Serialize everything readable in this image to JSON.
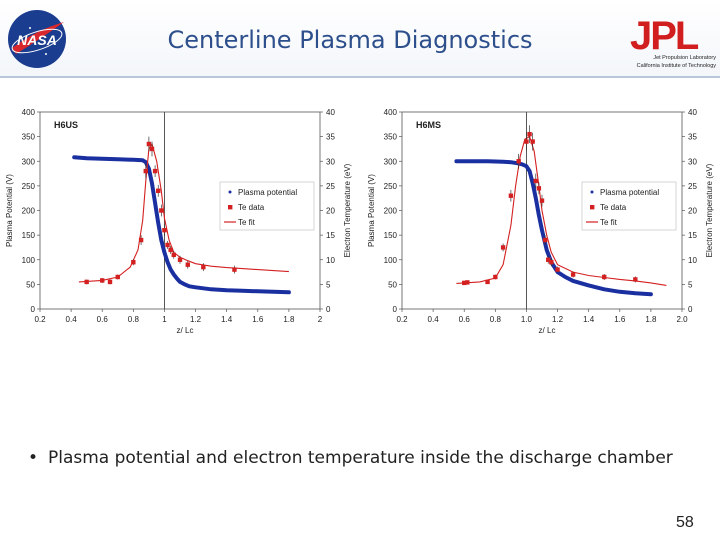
{
  "header": {
    "title": "Centerline Plasma Diagnostics"
  },
  "logos": {
    "nasa_text": "NASA",
    "jpl_text": "JPL",
    "jpl_line1": "Jet Propulsion Laboratory",
    "jpl_line2": "California Institute of Technology"
  },
  "bullet": {
    "marker": "•",
    "text": "Plasma potential and electron temperature inside the discharge chamber"
  },
  "page_number": "58",
  "colors": {
    "title": "#2d4f8c",
    "potential": "#1a2fa0",
    "te": "#d42020",
    "vline": "#444444"
  },
  "chart_data": [
    {
      "type": "scatter",
      "title": "H6US",
      "xlabel": "z/ Lc",
      "ylabel": "Plasma Potential (V)",
      "ylabel_right": "Electron Temperature (eV)",
      "xlim": [
        0.2,
        2.0
      ],
      "x_ticks": [
        "0.2",
        "0.4",
        "0.6",
        "0.8",
        "1",
        "1.2",
        "1.4",
        "1.6",
        "1.8",
        "2"
      ],
      "ylim": [
        0,
        400
      ],
      "y_ticks": [
        "0",
        "50",
        "100",
        "150",
        "200",
        "250",
        "300",
        "350",
        "400"
      ],
      "y2lim": [
        0,
        40
      ],
      "y2_ticks": [
        "0",
        "5",
        "10",
        "15",
        "20",
        "25",
        "30",
        "35",
        "40"
      ],
      "vline_x": 1.0,
      "legend_position": "right",
      "legend": [
        "Plasma potential",
        "Te data",
        "Te fit"
      ],
      "series": [
        {
          "name": "Plasma potential",
          "axis": "left",
          "x": [
            0.42,
            0.5,
            0.6,
            0.7,
            0.8,
            0.86,
            0.88,
            0.9,
            0.92,
            0.94,
            0.96,
            0.98,
            1.0,
            1.02,
            1.04,
            1.06,
            1.08,
            1.1,
            1.13,
            1.16,
            1.2,
            1.25,
            1.3,
            1.4,
            1.5,
            1.6,
            1.7,
            1.8
          ],
          "y": [
            308,
            306,
            305,
            304,
            303,
            302,
            298,
            285,
            255,
            215,
            175,
            140,
            115,
            95,
            80,
            70,
            62,
            55,
            50,
            46,
            44,
            42,
            40,
            38,
            37,
            36,
            35,
            34
          ]
        },
        {
          "name": "Te data",
          "axis": "right",
          "x": [
            0.5,
            0.6,
            0.65,
            0.7,
            0.8,
            0.85,
            0.88,
            0.9,
            0.92,
            0.94,
            0.96,
            0.98,
            1.0,
            1.02,
            1.04,
            1.06,
            1.1,
            1.15,
            1.25,
            1.45
          ],
          "y": [
            5.5,
            5.8,
            5.5,
            6.5,
            9.5,
            14,
            28,
            33.5,
            32.5,
            28,
            24,
            20,
            16,
            13,
            12,
            11,
            10,
            9,
            8.5,
            8
          ],
          "err": [
            0.5,
            0.5,
            0.5,
            0.5,
            0.6,
            1,
            1.5,
            1.5,
            1.5,
            1.2,
            1.2,
            1.2,
            1.2,
            0.8,
            0.8,
            0.8,
            0.8,
            0.8,
            0.8,
            0.8
          ]
        },
        {
          "name": "Te fit",
          "axis": "right",
          "x": [
            0.45,
            0.6,
            0.7,
            0.78,
            0.83,
            0.86,
            0.88,
            0.9,
            0.92,
            0.95,
            0.98,
            1.0,
            1.03,
            1.06,
            1.1,
            1.15,
            1.2,
            1.3,
            1.4,
            1.5,
            1.6,
            1.7,
            1.8
          ],
          "y": [
            5.5,
            5.8,
            6.5,
            8.5,
            12,
            18,
            26,
            32.5,
            33.5,
            30,
            24,
            18.5,
            14,
            11.5,
            10.5,
            9.8,
            9.2,
            8.7,
            8.4,
            8.2,
            8,
            7.8,
            7.6
          ]
        }
      ]
    },
    {
      "type": "scatter",
      "title": "H6MS",
      "xlabel": "z/ Lc",
      "ylabel": "Plasma Potential (V)",
      "ylabel_right": "Electron Temperature (eV)",
      "xlim": [
        0.2,
        2.0
      ],
      "x_ticks": [
        "0.2",
        "0.4",
        "0.6",
        "0.8",
        "1.0",
        "1.2",
        "1.4",
        "1.6",
        "1.8",
        "2.0"
      ],
      "ylim": [
        0,
        400
      ],
      "y_ticks": [
        "0",
        "50",
        "100",
        "150",
        "200",
        "250",
        "300",
        "350",
        "400"
      ],
      "y2lim": [
        0,
        40
      ],
      "y2_ticks": [
        "0",
        "5",
        "10",
        "15",
        "20",
        "25",
        "30",
        "35",
        "40"
      ],
      "vline_x": 1.0,
      "legend_position": "right",
      "legend": [
        "Plasma potential",
        "Te data",
        "Te fit"
      ],
      "series": [
        {
          "name": "Plasma potential",
          "axis": "left",
          "x": [
            0.55,
            0.65,
            0.75,
            0.85,
            0.9,
            0.94,
            0.97,
            1.0,
            1.02,
            1.04,
            1.06,
            1.08,
            1.1,
            1.13,
            1.16,
            1.2,
            1.25,
            1.3,
            1.4,
            1.5,
            1.6,
            1.7,
            1.8
          ],
          "y": [
            300,
            300,
            300,
            299,
            298,
            296,
            294,
            290,
            280,
            255,
            225,
            190,
            160,
            120,
            95,
            75,
            65,
            57,
            48,
            40,
            35,
            32,
            30
          ]
        },
        {
          "name": "Te data",
          "axis": "right",
          "x": [
            0.6,
            0.62,
            0.75,
            0.8,
            0.85,
            0.9,
            0.95,
            1.0,
            1.02,
            1.04,
            1.06,
            1.08,
            1.1,
            1.12,
            1.14,
            1.16,
            1.2,
            1.3,
            1.5,
            1.7
          ],
          "y": [
            5.3,
            5.4,
            5.5,
            6.5,
            12.5,
            23,
            30,
            34,
            35.5,
            34,
            26,
            24.5,
            22,
            14,
            10,
            9.5,
            8,
            7,
            6.5,
            6
          ],
          "err": [
            0.4,
            0.4,
            0.4,
            0.5,
            0.8,
            1.2,
            1.5,
            1.8,
            1.8,
            1.8,
            1.5,
            1.2,
            1.2,
            1,
            0.8,
            0.8,
            0.6,
            0.6,
            0.6,
            0.6
          ]
        },
        {
          "name": "Te fit",
          "axis": "right",
          "x": [
            0.55,
            0.7,
            0.8,
            0.85,
            0.9,
            0.93,
            0.96,
            0.99,
            1.02,
            1.05,
            1.08,
            1.1,
            1.13,
            1.16,
            1.2,
            1.3,
            1.4,
            1.5,
            1.6,
            1.7,
            1.8,
            1.9
          ],
          "y": [
            5.2,
            5.5,
            6.3,
            9,
            17,
            25,
            31,
            34.5,
            35,
            32,
            25,
            20,
            15,
            11.5,
            9,
            7.5,
            6.8,
            6.4,
            6,
            5.7,
            5.3,
            4.8
          ]
        }
      ]
    }
  ]
}
